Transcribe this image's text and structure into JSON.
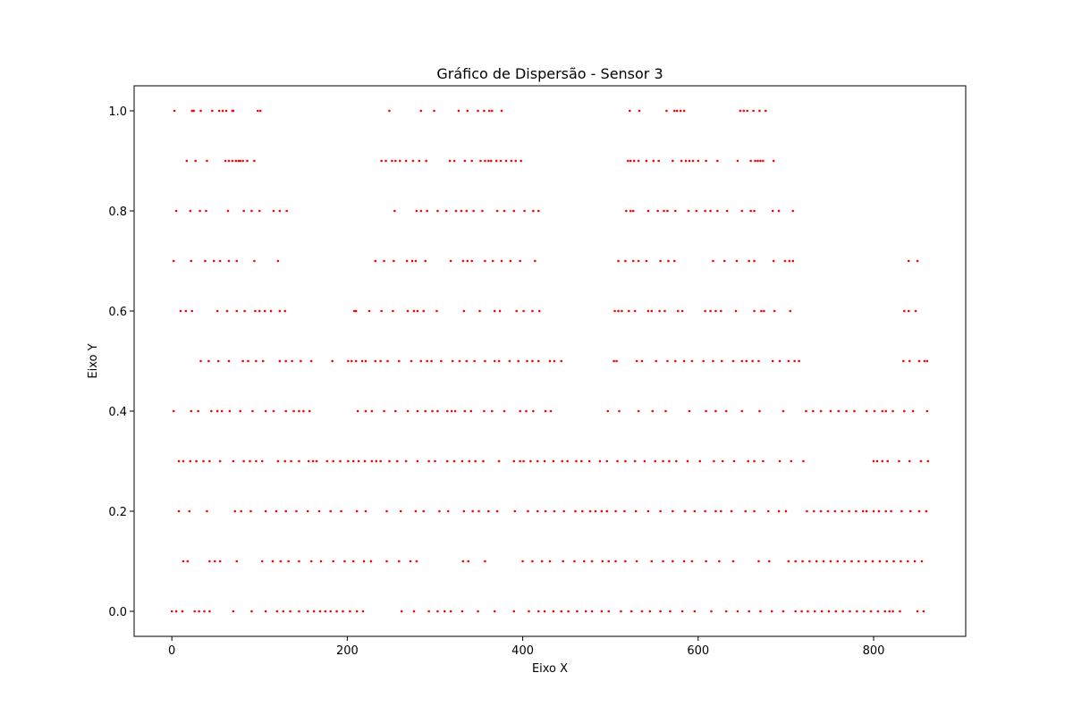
{
  "chart_data": {
    "type": "scatter",
    "title": "Gráfico de Dispersão - Sensor 3",
    "xlabel": "Eixo X",
    "ylabel": "Eixo Y",
    "xlim": [
      -43,
      905
    ],
    "ylim": [
      -0.05,
      1.05
    ],
    "xticks": [
      0,
      200,
      400,
      600,
      800
    ],
    "yticks": [
      0.0,
      0.2,
      0.4,
      0.6,
      0.8,
      1.0
    ],
    "xtick_labels": [
      "0",
      "200",
      "400",
      "600",
      "800"
    ],
    "ytick_labels": [
      "0.0",
      "0.2",
      "0.4",
      "0.6",
      "0.8",
      "1.0"
    ],
    "grid": false,
    "marker_color": "#ff0000",
    "series": [
      {
        "rows": [
          {
            "y": 1.0,
            "x": [
              3,
              23,
              25,
              33,
              46,
              54,
              58,
              62,
              69,
              70,
              98,
              101,
              248,
              284,
              299,
              327,
              337,
              349,
              356,
              362,
              365,
              376,
              522,
              533,
              564,
              573,
              576,
              580,
              584,
              648,
              652,
              656,
              663,
              670,
              677
            ]
          },
          {
            "y": 0.9,
            "x": [
              17,
              27,
              40,
              61,
              65,
              69,
              73,
              76,
              78,
              81,
              86,
              94,
              239,
              244,
              251,
              255,
              260,
              267,
              275,
              282,
              290,
              317,
              322,
              334,
              342,
              352,
              357,
              361,
              364,
              370,
              375,
              381,
              387,
              392,
              398,
              520,
              523,
              527,
              532,
              541,
              549,
              555,
              571,
              581,
              586,
              590,
              594,
              600,
              609,
              622,
              645,
              660,
              665,
              668,
              671,
              674,
              686
            ]
          },
          {
            "y": 0.8,
            "x": [
              5,
              21,
              32,
              39,
              64,
              82,
              91,
              100,
              116,
              123,
              131,
              254,
              279,
              284,
              291,
              303,
              313,
              324,
              330,
              336,
              344,
              354,
              371,
              379,
              390,
              402,
              412,
              418,
              518,
              523,
              526,
              543,
              554,
              561,
              565,
              574,
              589,
              598,
              608,
              614,
              622,
              633,
              650,
              660,
              664,
              685,
              692,
              708
            ]
          },
          {
            "y": 0.7,
            "x": [
              2,
              22,
              38,
              48,
              55,
              65,
              74,
              94,
              121,
              232,
              242,
              253,
              268,
              274,
              278,
              289,
              318,
              332,
              337,
              342,
              357,
              366,
              376,
              386,
              397,
              414,
              509,
              517,
              526,
              532,
              541,
              557,
              566,
              573,
              617,
              630,
              644,
              658,
              664,
              686,
              699,
              704,
              708,
              840,
              850
            ]
          },
          {
            "y": 0.6,
            "x": [
              10,
              16,
              23,
              52,
              63,
              74,
              83,
              95,
              100,
              106,
              113,
              123,
              129,
              208,
              210,
              225,
              239,
              252,
              269,
              276,
              280,
              287,
              302,
              333,
              351,
              368,
              374,
              393,
              401,
              411,
              419,
              505,
              509,
              513,
              521,
              528,
              543,
              547,
              556,
              562,
              577,
              582,
              608,
              614,
              620,
              626,
              643,
              664,
              672,
              675,
              687,
              705,
              835,
              840,
              848
            ]
          },
          {
            "y": 0.5,
            "x": [
              33,
              42,
              53,
              65,
              81,
              87,
              96,
              104,
              123,
              130,
              137,
              147,
              159,
              183,
              201,
              205,
              210,
              217,
              221,
              232,
              238,
              246,
              259,
              273,
              284,
              291,
              296,
              307,
              320,
              328,
              336,
              345,
              357,
              368,
              373,
              385,
              395,
              405,
              411,
              418,
              431,
              436,
              444,
              504,
              507,
              530,
              536,
              552,
              565,
              574,
              584,
              593,
              606,
              617,
              627,
              640,
              650,
              655,
              662,
              669,
              685,
              693,
              703,
              710,
              715,
              834,
              841,
              852,
              858,
              861
            ]
          },
          {
            "y": 0.4,
            "x": [
              2,
              22,
              30,
              45,
              52,
              57,
              66,
              78,
              92,
              107,
              116,
              130,
              139,
              145,
              150,
              157,
              212,
              221,
              228,
              242,
              255,
              269,
              280,
              289,
              297,
              303,
              314,
              319,
              323,
              334,
              341,
              356,
              365,
              379,
              397,
              404,
              412,
              426,
              432,
              497,
              510,
              532,
              548,
              563,
              590,
              609,
              620,
              632,
              650,
              670,
              697,
              723,
              731,
              740,
              751,
              760,
              769,
              778,
              792,
              801,
              810,
              814,
              822,
              835,
              845,
              861
            ]
          },
          {
            "y": 0.3,
            "x": [
              8,
              13,
              21,
              28,
              36,
              43,
              55,
              70,
              82,
              89,
              96,
              103,
              121,
              129,
              136,
              145,
              156,
              161,
              165,
              177,
              184,
              192,
              201,
              207,
              213,
              220,
              228,
              233,
              238,
              248,
              257,
              267,
              280,
              293,
              300,
              314,
              322,
              331,
              339,
              346,
              355,
              373,
              390,
              397,
              401,
              409,
              417,
              425,
              435,
              445,
              451,
              461,
              467,
              476,
              488,
              496,
              508,
              517,
              528,
              539,
              551,
              560,
              567,
              575,
              588,
              602,
              618,
              628,
              641,
              657,
              664,
              674,
              693,
              706,
              720,
              800,
              804,
              810,
              816,
              829,
              841,
              854,
              862
            ]
          },
          {
            "y": 0.2,
            "x": [
              8,
              20,
              40,
              72,
              79,
              90,
              107,
              119,
              130,
              142,
              155,
              168,
              181,
              193,
              211,
              221,
              245,
              261,
              278,
              287,
              305,
              315,
              333,
              343,
              350,
              361,
              371,
              391,
              406,
              417,
              426,
              436,
              447,
              460,
              468,
              477,
              483,
              490,
              496,
              506,
              516,
              529,
              543,
              557,
              571,
              585,
              596,
              608,
              620,
              626,
              638,
              654,
              664,
              680,
              692,
              700,
              724,
              732,
              740,
              748,
              756,
              764,
              772,
              780,
              788,
              792,
              800,
              806,
              814,
              820,
              832,
              842,
              852,
              860
            ]
          },
          {
            "y": 0.1,
            "x": [
              13,
              18,
              43,
              49,
              55,
              74,
              103,
              115,
              124,
              133,
              145,
              159,
              170,
              184,
              197,
              207,
              219,
              227,
              245,
              259,
              272,
              279,
              332,
              338,
              357,
              400,
              411,
              422,
              431,
              446,
              459,
              470,
              479,
              491,
              498,
              506,
              517,
              530,
              547,
              560,
              571,
              584,
              593,
              609,
              624,
              640,
              669,
              681,
              703,
              711,
              719,
              727,
              735,
              743,
              751,
              759,
              767,
              775,
              783,
              791,
              799,
              807,
              815,
              823,
              831,
              839,
              847,
              855
            ]
          },
          {
            "y": 0.0,
            "x": [
              0,
              5,
              12,
              26,
              31,
              37,
              43,
              70,
              91,
              107,
              120,
              127,
              135,
              145,
              155,
              162,
              169,
              175,
              181,
              188,
              195,
              203,
              211,
              218,
              262,
              276,
              293,
              303,
              311,
              318,
              331,
              349,
              368,
              390,
              407,
              418,
              425,
              435,
              444,
              452,
              462,
              472,
              479,
              490,
              498,
              512,
              524,
              536,
              545,
              557,
              568,
              582,
              596,
              615,
              632,
              645,
              658,
              671,
              684,
              697,
              711,
              718,
              725,
              733,
              741,
              749,
              757,
              765,
              773,
              781,
              789,
              797,
              805,
              813,
              818,
              822,
              830,
              850,
              857
            ]
          }
        ]
      }
    ]
  }
}
